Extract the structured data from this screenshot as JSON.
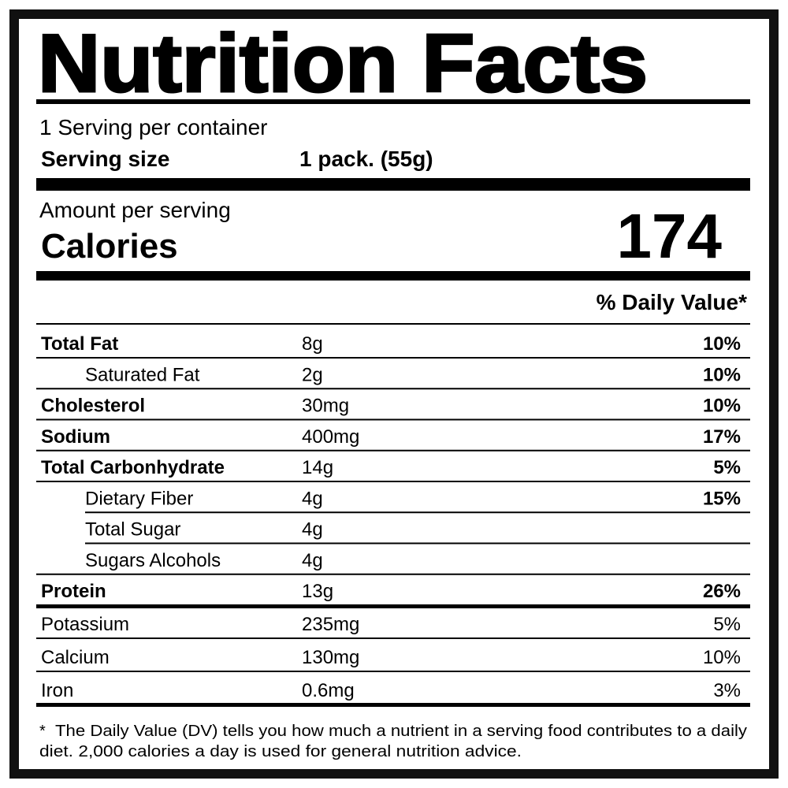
{
  "title": "Nutrition Facts",
  "servings_per_container": "1 Serving per container",
  "serving_size": {
    "label": "Serving size",
    "value": "1 pack. (55g)"
  },
  "amount_per_serving": "Amount per serving",
  "calories": {
    "label": "Calories",
    "value": 174
  },
  "daily_value_header": "% Daily Value*",
  "nutrients": [
    {
      "name": "Total Fat",
      "amount": "8g",
      "dv": "10%",
      "subs": [
        {
          "name": "Saturated Fat",
          "amount": "2g",
          "dv": "10%"
        }
      ]
    },
    {
      "name": "Cholesterol",
      "amount": "30mg",
      "dv": "10%",
      "subs": []
    },
    {
      "name": "Sodium",
      "amount": "400mg",
      "dv": "17%",
      "subs": []
    },
    {
      "name": "Total Carbonhydrate",
      "amount": "14g",
      "dv": "5%",
      "subs": [
        {
          "name": "Dietary Fiber",
          "amount": "4g",
          "dv": "15%"
        },
        {
          "name": "Total Sugar",
          "amount": "4g",
          "dv": null
        },
        {
          "name": "Sugars Alcohols",
          "amount": "4g",
          "dv": null
        }
      ]
    },
    {
      "name": "Protein",
      "amount": "13g",
      "dv": "26%",
      "subs": []
    }
  ],
  "minerals": [
    {
      "name": "Potassium",
      "amount": "235mg",
      "dv": "5%"
    },
    {
      "name": "Calcium",
      "amount": "130mg",
      "dv": "10%"
    },
    {
      "name": "Iron",
      "amount": "0.6mg",
      "dv": "3%"
    }
  ],
  "footnote": {
    "marker": "*",
    "lines": [
      "The  Daily Value (DV) tells you how much a nutrient in a serving food contributes to a daily",
      "diet. 2,000 calories a day is used for general nutrition advice."
    ]
  }
}
